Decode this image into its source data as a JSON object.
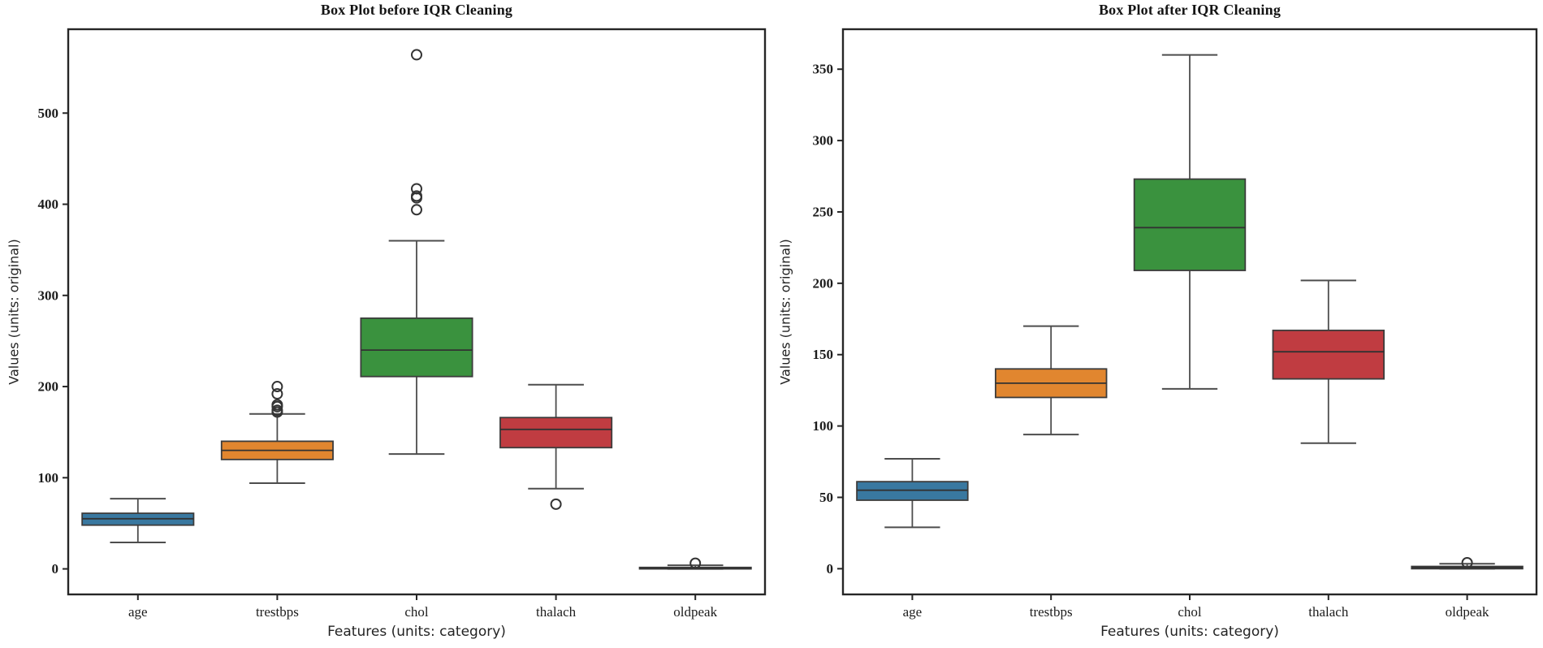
{
  "figure": {
    "background": "#ffffff",
    "description": "Two side-by-side box plots of heart dataset features before and after IQR outlier cleaning"
  },
  "styles": {
    "axis_color": "#262626",
    "box_edge": "#3c3c3c",
    "median_color": "#323232",
    "whisker_color": "#4d4d4d",
    "flier_edge": "#343434",
    "tick_text_color": "#1c1c1c",
    "label_text_color": "#232323"
  },
  "chart_data": [
    {
      "type": "boxplot",
      "title": "Box Plot before IQR Cleaning",
      "xlabel": "Features (units: category)",
      "ylabel": "Values (units: original)",
      "categories": [
        "age",
        "trestbps",
        "chol",
        "thalach",
        "oldpeak"
      ],
      "ylim": [
        -28,
        592
      ],
      "yticks": [
        0,
        100,
        200,
        300,
        400,
        500
      ],
      "grid": false,
      "legend": "none",
      "series": [
        {
          "name": "age",
          "color": "#3978a0",
          "whislo": 29,
          "q1": 48,
          "med": 55,
          "q3": 61,
          "whishi": 77,
          "outliers": []
        },
        {
          "name": "trestbps",
          "color": "#e1862f",
          "whislo": 94,
          "q1": 120,
          "med": 130,
          "q3": 140,
          "whishi": 170,
          "outliers": [
            172,
            174,
            178,
            180,
            192,
            200
          ]
        },
        {
          "name": "chol",
          "color": "#3a923e",
          "whislo": 126,
          "q1": 211,
          "med": 240,
          "q3": 275,
          "whishi": 360,
          "outliers": [
            394,
            407,
            409,
            417,
            564
          ]
        },
        {
          "name": "thalach",
          "color": "#c03c41",
          "whislo": 88,
          "q1": 133,
          "med": 153,
          "q3": 166,
          "whishi": 202,
          "outliers": [
            71
          ]
        },
        {
          "name": "oldpeak",
          "color": "#4d4d4d",
          "whislo": 0,
          "q1": 0,
          "med": 0.8,
          "q3": 1.6,
          "whishi": 4.0,
          "outliers": [
            6.2
          ]
        }
      ]
    },
    {
      "type": "boxplot",
      "title": "Box Plot after IQR Cleaning",
      "xlabel": "Features (units: category)",
      "ylabel": "Values (units: original)",
      "categories": [
        "age",
        "trestbps",
        "chol",
        "thalach",
        "oldpeak"
      ],
      "ylim": [
        -18,
        378
      ],
      "yticks": [
        0,
        50,
        100,
        150,
        200,
        250,
        300,
        350
      ],
      "grid": false,
      "legend": "none",
      "series": [
        {
          "name": "age",
          "color": "#3978a0",
          "whislo": 29,
          "q1": 48,
          "med": 55,
          "q3": 61,
          "whishi": 77,
          "outliers": []
        },
        {
          "name": "trestbps",
          "color": "#e1862f",
          "whislo": 94,
          "q1": 120,
          "med": 130,
          "q3": 140,
          "whishi": 170,
          "outliers": []
        },
        {
          "name": "chol",
          "color": "#3a923e",
          "whislo": 126,
          "q1": 209,
          "med": 239,
          "q3": 273,
          "whishi": 360,
          "outliers": []
        },
        {
          "name": "thalach",
          "color": "#c03c41",
          "whislo": 88,
          "q1": 133,
          "med": 152,
          "q3": 167,
          "whishi": 202,
          "outliers": []
        },
        {
          "name": "oldpeak",
          "color": "#4d4d4d",
          "whislo": 0,
          "q1": 0,
          "med": 0.8,
          "q3": 1.6,
          "whishi": 3.5,
          "outliers": [
            4.2
          ]
        }
      ]
    }
  ]
}
